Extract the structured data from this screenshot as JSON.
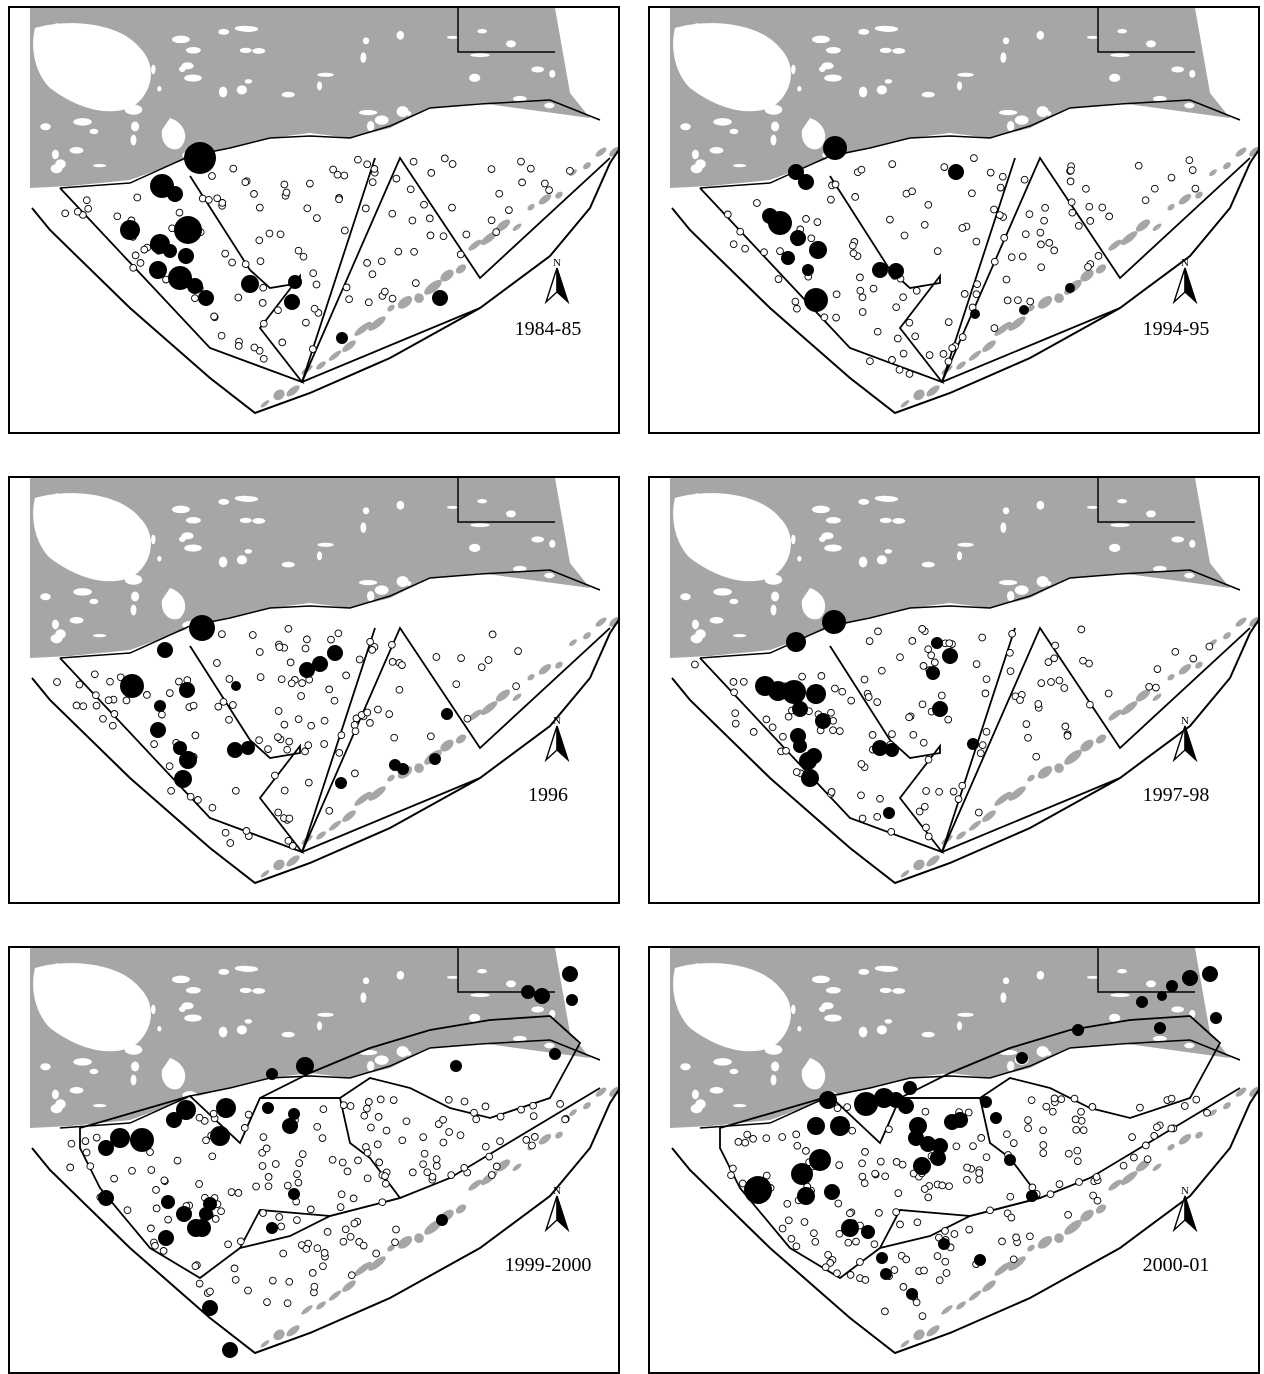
{
  "panels": [
    {
      "year_label": "1984-85"
    },
    {
      "year_label": "1994-95"
    },
    {
      "year_label": "1996"
    },
    {
      "year_label": "1997-98"
    },
    {
      "year_label": "1999-2000"
    },
    {
      "year_label": "2000-01"
    }
  ],
  "north_arrow_label": "N",
  "colors": {
    "land": "#a6a6a6",
    "water": "#ffffff",
    "line": "#000000",
    "presence": "#000000",
    "absence": "#ffffff"
  }
}
